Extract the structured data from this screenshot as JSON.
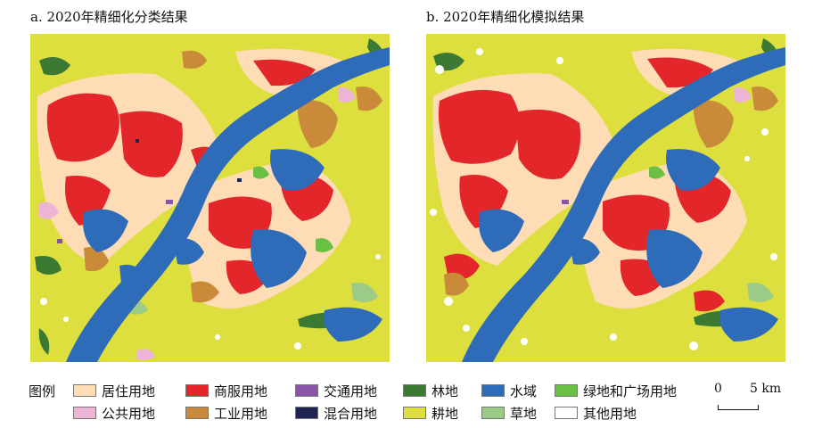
{
  "panels": [
    {
      "title": "a. 2020年精细化分类结果"
    },
    {
      "title": "b. 2020年精细化模拟结果"
    }
  ],
  "legend": {
    "title": "图例",
    "items": [
      {
        "label": "居住用地",
        "color": "#FDDCB6"
      },
      {
        "label": "商服用地",
        "color": "#E3262A"
      },
      {
        "label": "交通用地",
        "color": "#8A55A8"
      },
      {
        "label": "林地",
        "color": "#3C7A33"
      },
      {
        "label": "水域",
        "color": "#2E6BB8"
      },
      {
        "label": "绿地和广场用地",
        "color": "#6CBF45"
      },
      {
        "label": "公共用地",
        "color": "#EDB5D5"
      },
      {
        "label": "工业用地",
        "color": "#C98A3A"
      },
      {
        "label": "混合用地",
        "color": "#1E2354"
      },
      {
        "label": "耕地",
        "color": "#DDDF3E"
      },
      {
        "label": "草地",
        "color": "#9BCB86"
      },
      {
        "label": "其他用地",
        "color": "#FFFFFF"
      }
    ]
  },
  "scale": {
    "zero": "0",
    "distance": "5 km"
  }
}
